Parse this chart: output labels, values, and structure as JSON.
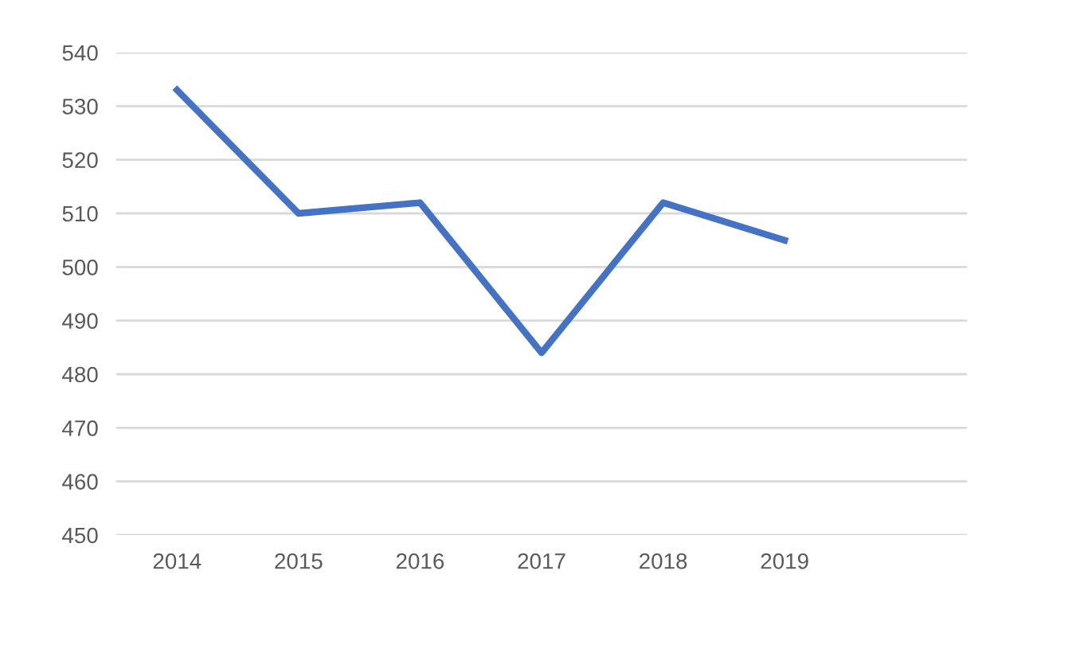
{
  "chart_data": {
    "type": "line",
    "categories": [
      "2014",
      "2015",
      "2016",
      "2017",
      "2018",
      "2019",
      null
    ],
    "series": [
      {
        "color": "#4472c4",
        "values": [
          533,
          510,
          512,
          484,
          512,
          505,
          null
        ]
      }
    ],
    "ylim": [
      450,
      540
    ],
    "yticks": [
      450,
      460,
      470,
      480,
      490,
      500,
      510,
      520,
      530,
      540
    ],
    "grid": "y",
    "marker": "none",
    "line_style": "solid"
  }
}
